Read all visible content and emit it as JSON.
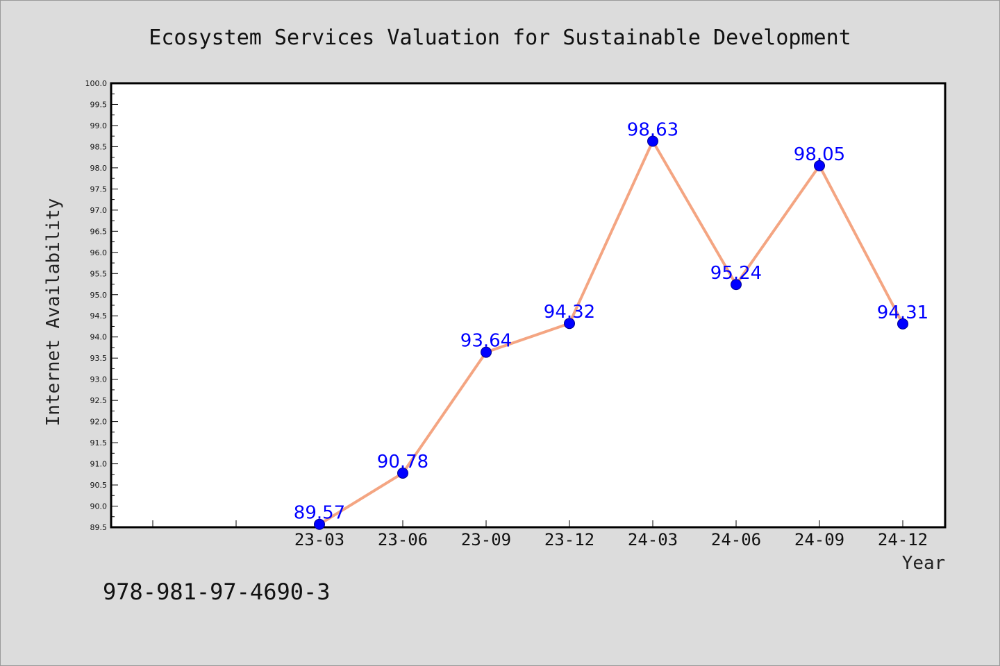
{
  "chart_data": {
    "type": "line",
    "title": "Ecosystem Services Valuation for Sustainable Development",
    "xlabel": "Year",
    "ylabel": "Internet Availability",
    "categories": [
      "23-03",
      "23-06",
      "23-09",
      "23-12",
      "24-03",
      "24-06",
      "24-09",
      "24-12"
    ],
    "series": [
      {
        "values": [
          89.57,
          90.78,
          93.64,
          94.32,
          98.63,
          95.24,
          98.05,
          94.31
        ]
      }
    ],
    "data_labels": [
      "89.57",
      "90.78",
      "93.64",
      "94.32",
      "98.63",
      "95.24",
      "98.05",
      "94.31"
    ],
    "ylim": [
      89.5,
      100.0
    ],
    "yticks": [
      "89.5",
      "90.0",
      "90.5",
      "91.0",
      "91.5",
      "92.0",
      "92.5",
      "93.0",
      "93.5",
      "94.0",
      "94.5",
      "95.0",
      "95.5",
      "96.0",
      "96.5",
      "97.0",
      "97.5",
      "98.0",
      "98.5",
      "99.0",
      "99.5",
      "100.0"
    ],
    "grid": false,
    "legend": "none",
    "line_color": "#f4a582",
    "marker_color": "#0000ff",
    "label_color": "#0000ff",
    "plot_background": "#ffffff",
    "figure_background": "#dcdcdc"
  },
  "footer": {
    "isbn": "978-981-97-4690-3"
  }
}
